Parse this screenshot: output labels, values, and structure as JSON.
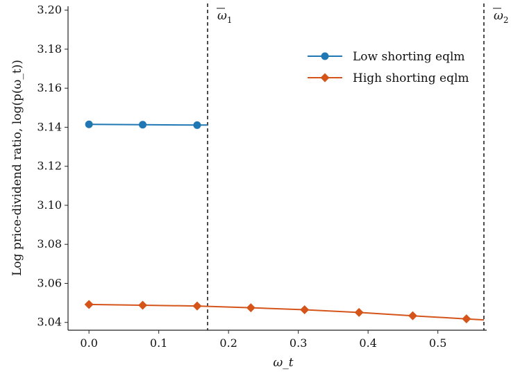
{
  "chart_data": {
    "type": "line",
    "xlabel": "ω_t",
    "ylabel": "Log price-dividend ratio, log(p(ω_t))",
    "xlim": [
      -0.03,
      0.57
    ],
    "ylim": [
      3.036,
      3.202
    ],
    "x_ticks": [
      0.0,
      0.1,
      0.2,
      0.3,
      0.4,
      0.5
    ],
    "x_tick_labels": [
      "0.0",
      "0.1",
      "0.2",
      "0.3",
      "0.4",
      "0.5"
    ],
    "y_ticks": [
      3.04,
      3.06,
      3.08,
      3.1,
      3.12,
      3.14,
      3.16,
      3.18,
      3.2
    ],
    "y_tick_labels": [
      "3.04",
      "3.06",
      "3.08",
      "3.10",
      "3.12",
      "3.14",
      "3.16",
      "3.18",
      "3.20"
    ],
    "grid": false,
    "legend_position": "top-right",
    "series": [
      {
        "name": "Low shorting eqlm",
        "color": "#1f77b4",
        "marker": "circle",
        "x": [
          0.0,
          0.077,
          0.155,
          0.17
        ],
        "y": [
          3.1415,
          3.1413,
          3.1411,
          3.1411
        ],
        "marker_x": [
          0.0,
          0.077,
          0.155
        ]
      },
      {
        "name": "High shorting eqlm",
        "color": "#d4541a",
        "marker": "diamond",
        "x": [
          0.0,
          0.077,
          0.155,
          0.232,
          0.309,
          0.387,
          0.464,
          0.541,
          0.566
        ],
        "y": [
          3.0492,
          3.0488,
          3.0484,
          3.0475,
          3.0465,
          3.0451,
          3.0434,
          3.0418,
          3.0413
        ],
        "marker_x": [
          0.0,
          0.077,
          0.155,
          0.232,
          0.309,
          0.387,
          0.464,
          0.541
        ]
      }
    ],
    "vlines": [
      {
        "x": 0.17,
        "label_base": "ω",
        "label_sub": "1"
      },
      {
        "x": 0.566,
        "label_base": "ω",
        "label_sub": "2"
      }
    ]
  }
}
